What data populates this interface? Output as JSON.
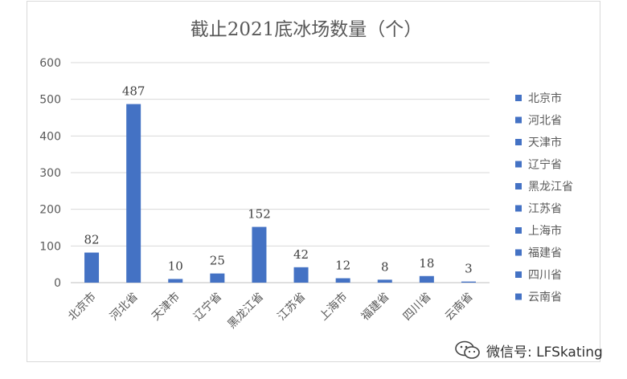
{
  "chart_data": {
    "type": "bar",
    "title": "截止2021底冰场数量（个）",
    "categories": [
      "北京市",
      "河北省",
      "天津市",
      "辽宁省",
      "黑龙江省",
      "江苏省",
      "上海市",
      "福建省",
      "四川省",
      "云南省"
    ],
    "values": [
      82,
      487,
      10,
      25,
      152,
      42,
      12,
      8,
      18,
      3
    ],
    "data_labels": [
      "82",
      "487",
      "10",
      "25",
      "152",
      "42",
      "12",
      "8",
      "18",
      "3"
    ],
    "yticks": [
      "0",
      "100",
      "200",
      "300",
      "400",
      "500",
      "600"
    ],
    "ylim": [
      0,
      600
    ],
    "xlabel": "",
    "ylabel": "",
    "grid": true,
    "legend_position": "right",
    "legend": [
      "北京市",
      "河北省",
      "天津市",
      "辽宁省",
      "黑龙江省",
      "江苏省",
      "上海市",
      "福建省",
      "四川省",
      "云南省"
    ],
    "bar_color": "#4472c4"
  },
  "watermark": {
    "text": "微信号: LFSkating",
    "icon": "wechat-icon"
  }
}
